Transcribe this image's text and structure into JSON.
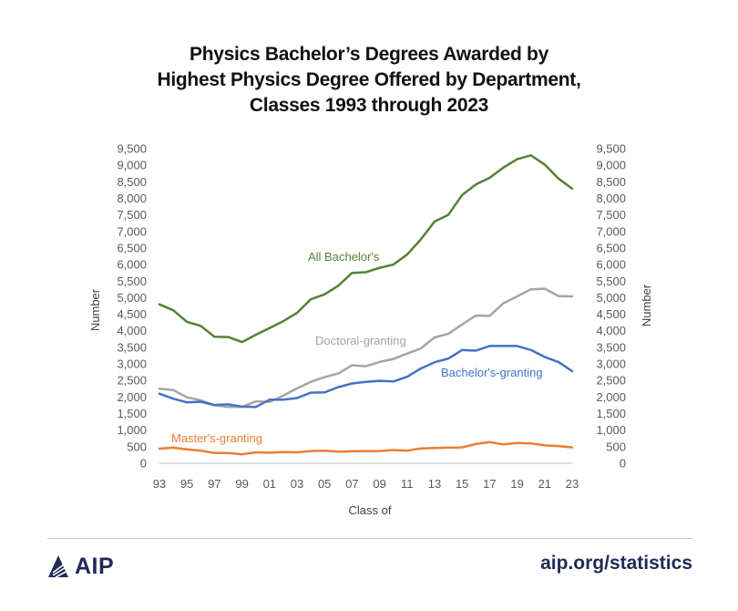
{
  "title_lines": [
    "Physics Bachelor’s Degrees Awarded by",
    "Highest Physics Degree Offered by Department,",
    "Classes 1993 through 2023"
  ],
  "footer": {
    "logo_text": "AIP",
    "site": "aip.org/statistics"
  },
  "colors": {
    "all_bachelors": "#548235",
    "doctoral": "#a5a5a5",
    "bachelors_granting": "#4472c4",
    "masters": "#ed7d31",
    "brand": "#1f2a55"
  },
  "chart_data": {
    "type": "line",
    "x": [
      93,
      94,
      95,
      96,
      97,
      98,
      99,
      0,
      1,
      2,
      3,
      4,
      5,
      6,
      7,
      8,
      9,
      10,
      11,
      12,
      13,
      14,
      15,
      16,
      17,
      18,
      19,
      20,
      21,
      22,
      23
    ],
    "x_tick_labels": [
      "93",
      "95",
      "97",
      "99",
      "01",
      "03",
      "05",
      "07",
      "09",
      "11",
      "13",
      "15",
      "17",
      "19",
      "21",
      "23"
    ],
    "xlabel": "Class of",
    "ylabel": "Number",
    "ylabel_right": "Number",
    "ylim": [
      0,
      9500
    ],
    "y_ticks": [
      "0",
      "500",
      "1,000",
      "1,500",
      "2,000",
      "2,500",
      "3,000",
      "3,500",
      "4,000",
      "4,500",
      "5,000",
      "5,500",
      "6,000",
      "6,500",
      "7,000",
      "7,500",
      "8,000",
      "8,500",
      "9,000",
      "9,500"
    ],
    "grid": false,
    "legend": "inline labels",
    "series": [
      {
        "name": "All Bachelor's",
        "values": [
          4800,
          4620,
          4270,
          4150,
          3820,
          3810,
          3660,
          3880,
          4080,
          4290,
          4540,
          4950,
          5100,
          5360,
          5750,
          5770,
          5900,
          6000,
          6300,
          6760,
          7300,
          7500,
          8100,
          8420,
          8620,
          8930,
          9180,
          9300,
          9020,
          8600,
          8290
        ]
      },
      {
        "name": "Doctoral-granting",
        "values": [
          2250,
          2210,
          1990,
          1900,
          1750,
          1700,
          1700,
          1870,
          1850,
          2040,
          2260,
          2460,
          2600,
          2710,
          2960,
          2930,
          3060,
          3150,
          3310,
          3470,
          3800,
          3910,
          4190,
          4460,
          4450,
          4830,
          5040,
          5250,
          5270,
          5050,
          5040
        ]
      },
      {
        "name": "Bachelor's-granting",
        "values": [
          2100,
          1950,
          1840,
          1860,
          1760,
          1780,
          1710,
          1700,
          1920,
          1920,
          1970,
          2130,
          2140,
          2300,
          2410,
          2460,
          2490,
          2470,
          2610,
          2860,
          3050,
          3160,
          3420,
          3400,
          3540,
          3540,
          3540,
          3420,
          3210,
          3060,
          2780
        ]
      },
      {
        "name": "Master's-granting",
        "values": [
          440,
          470,
          420,
          380,
          310,
          310,
          270,
          330,
          320,
          340,
          330,
          370,
          380,
          350,
          360,
          370,
          370,
          400,
          380,
          450,
          460,
          470,
          480,
          580,
          640,
          570,
          610,
          600,
          540,
          520,
          480
        ]
      }
    ]
  }
}
